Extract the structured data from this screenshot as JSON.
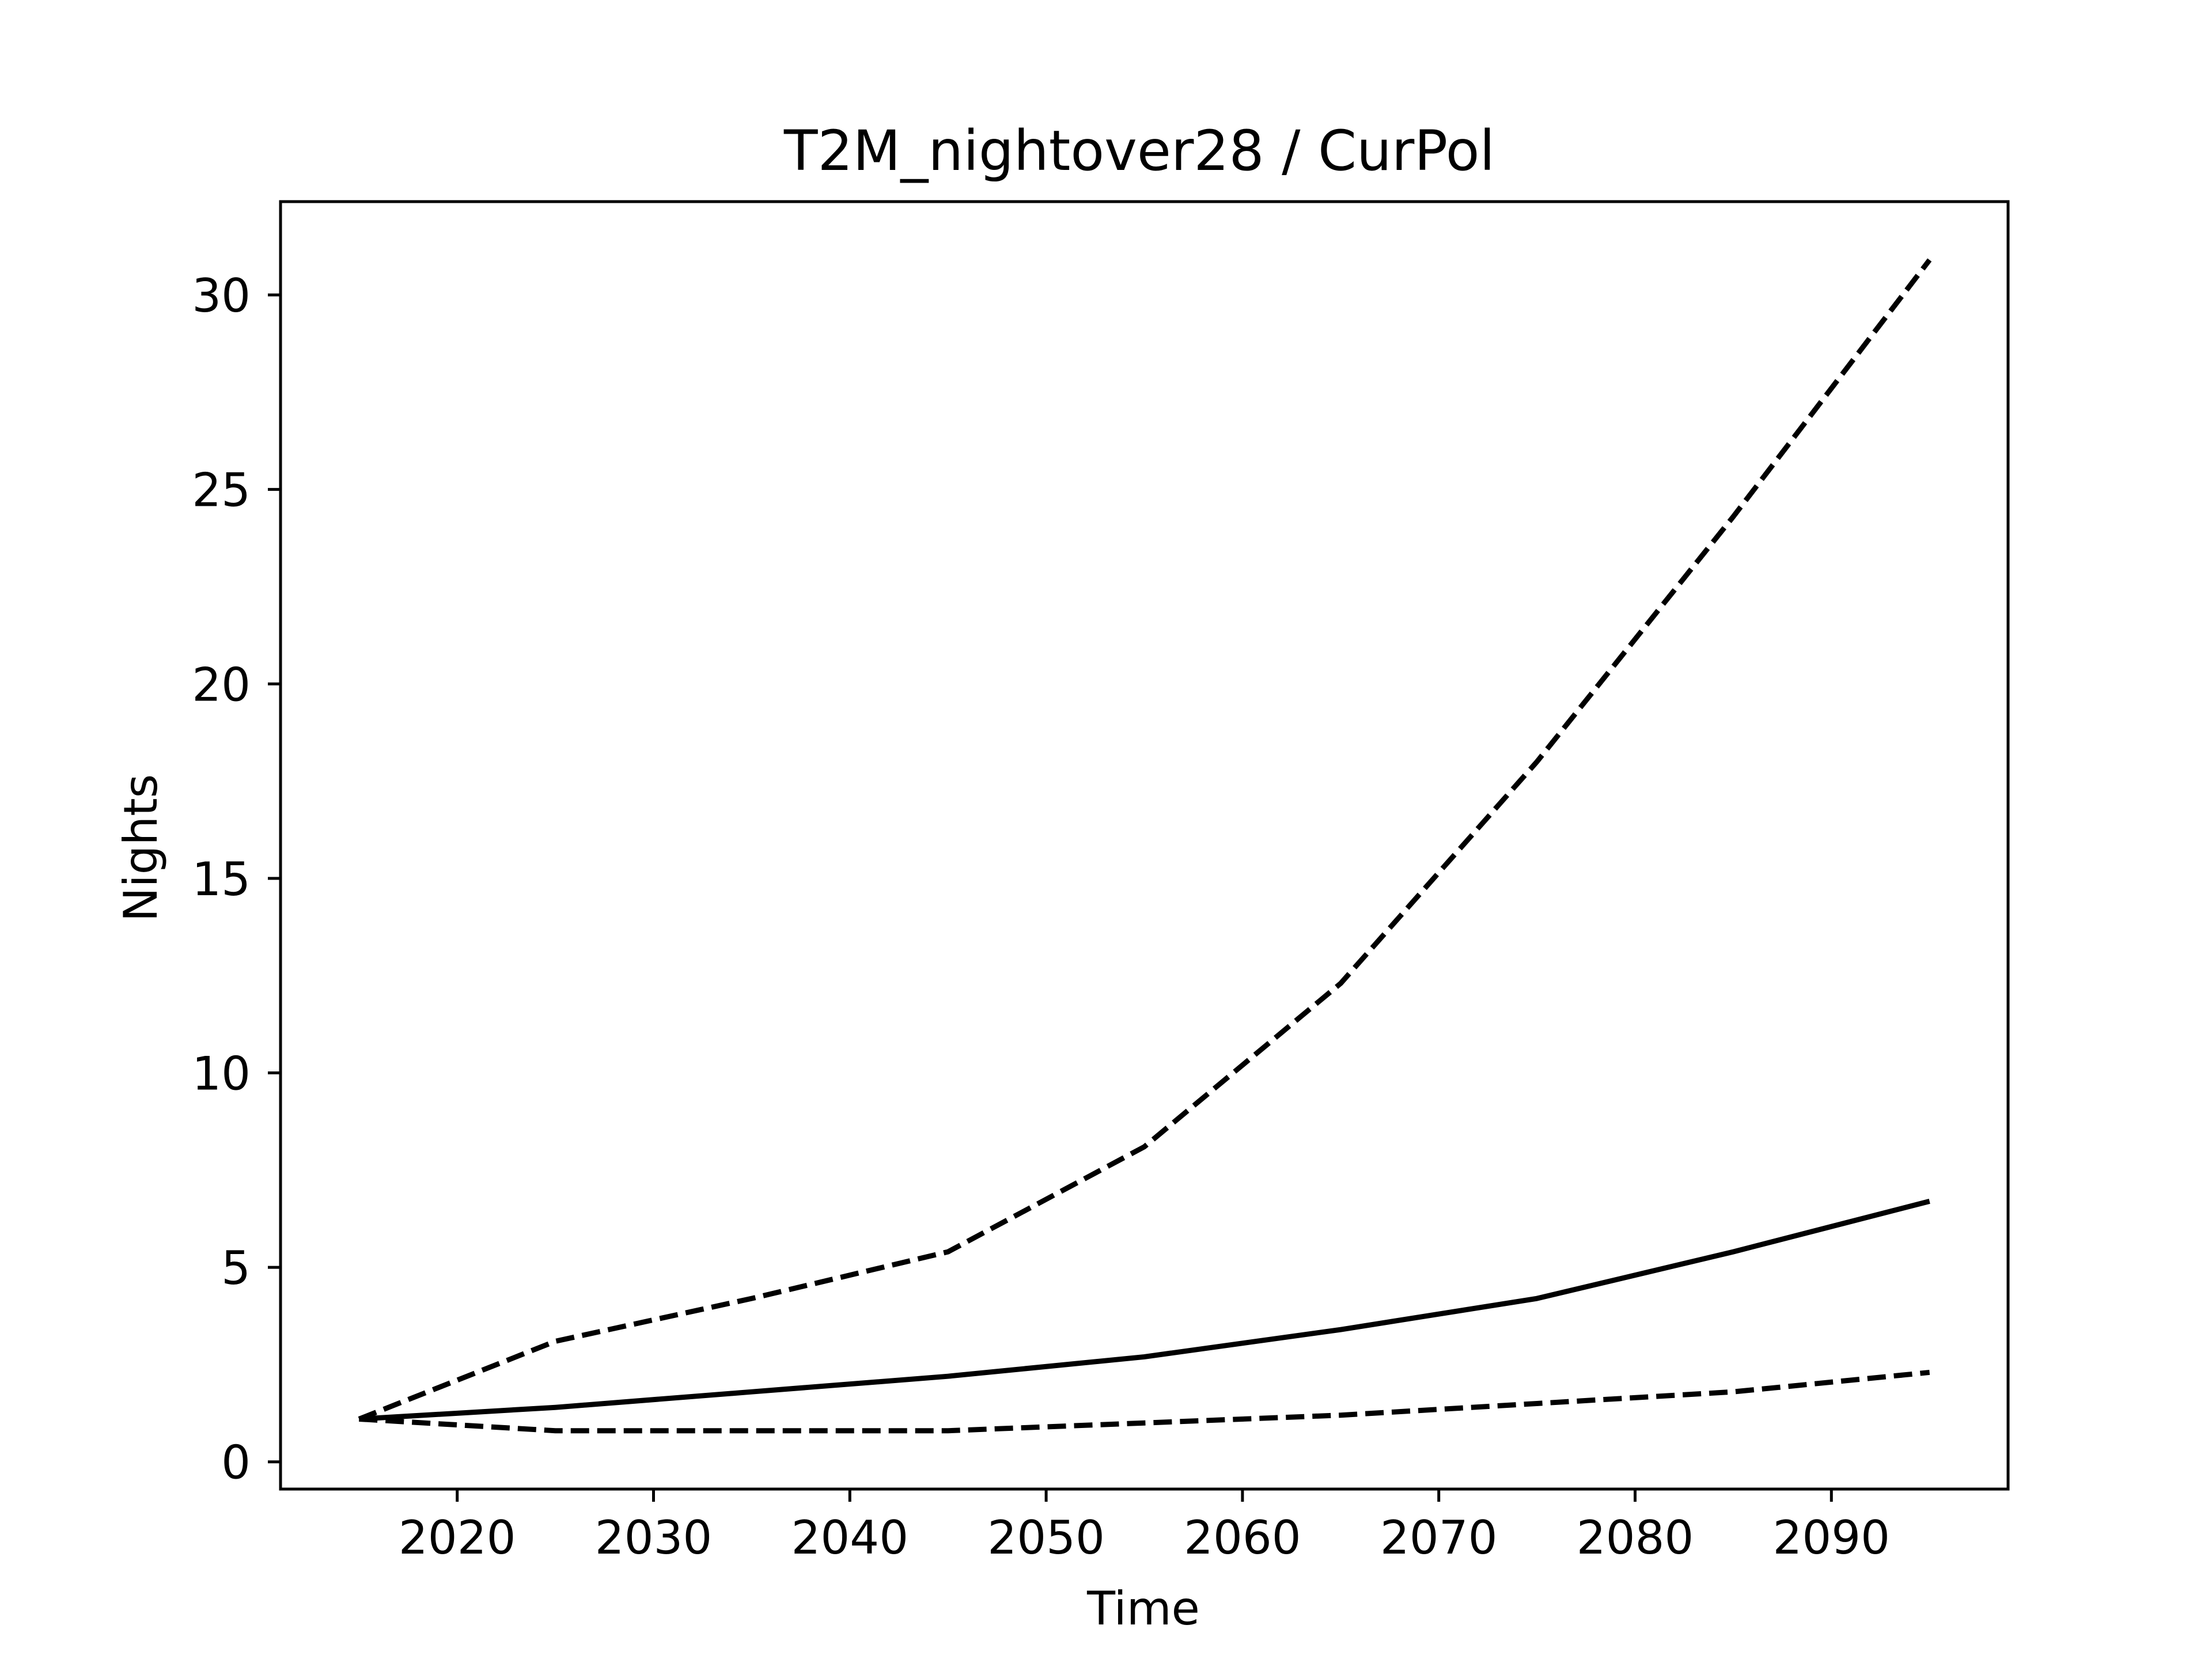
{
  "chart_data": {
    "type": "line",
    "title": "T2M_nightover28 / CurPol",
    "xlabel": "Time",
    "ylabel": "Nights",
    "xlim": [
      2011,
      2099
    ],
    "ylim": [
      -0.7,
      32.4
    ],
    "xticks": [
      2020,
      2030,
      2040,
      2050,
      2060,
      2070,
      2080,
      2090
    ],
    "yticks": [
      0,
      5,
      10,
      15,
      20,
      25,
      30
    ],
    "grid": false,
    "x": [
      2015,
      2025,
      2035,
      2045,
      2055,
      2065,
      2075,
      2085,
      2095
    ],
    "series": [
      {
        "style": "dashed",
        "values": [
          1.1,
          3.1,
          4.2,
          5.4,
          8.1,
          12.3,
          18.0,
          24.3,
          30.9
        ]
      },
      {
        "style": "solid",
        "values": [
          1.1,
          1.4,
          1.8,
          2.2,
          2.7,
          3.4,
          4.2,
          5.4,
          6.7
        ]
      },
      {
        "style": "dashed",
        "values": [
          1.1,
          0.8,
          0.8,
          0.8,
          1.0,
          1.2,
          1.5,
          1.8,
          2.3
        ]
      }
    ],
    "colors": {
      "line": "#000000",
      "axes": "#000000",
      "background": "#ffffff"
    }
  }
}
